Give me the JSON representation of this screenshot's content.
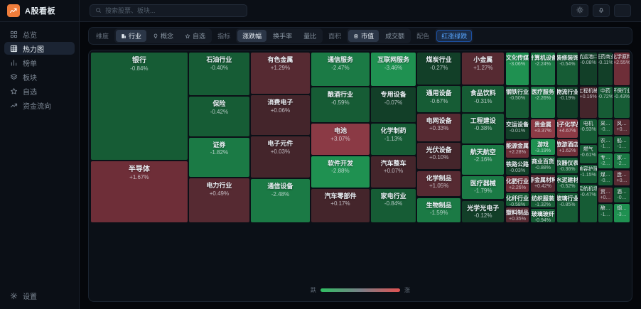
{
  "app": {
    "title": "A股看板",
    "logo_icon": "trend-logo-icon"
  },
  "header": {
    "search_placeholder": "搜索股票、板块...",
    "search_icon": "search-icon",
    "actions": [
      {
        "id": "theme",
        "icon": "sun-icon"
      },
      {
        "id": "notifications",
        "icon": "bell-icon"
      },
      {
        "id": "github",
        "icon": "github-icon"
      }
    ]
  },
  "sidebar": {
    "items": [
      {
        "id": "overview",
        "label": "总览",
        "icon": "grid-icon",
        "active": false
      },
      {
        "id": "heatmap",
        "label": "热力图",
        "icon": "heatmap-icon",
        "active": true
      },
      {
        "id": "ranking",
        "label": "榜单",
        "icon": "bar-chart-icon",
        "active": false
      },
      {
        "id": "sectors",
        "label": "板块",
        "icon": "layers-icon",
        "active": false
      },
      {
        "id": "watchlist",
        "label": "自选",
        "icon": "star-icon",
        "active": false
      },
      {
        "id": "fund-flow",
        "label": "资金流向",
        "icon": "trend-icon",
        "active": false
      }
    ],
    "footer": {
      "id": "settings",
      "label": "设置",
      "icon": "gear-icon"
    }
  },
  "toolbar": {
    "groups": [
      {
        "id": "dimension",
        "label": "维度",
        "selected": 0,
        "options": [
          {
            "label": "行业",
            "icon": "building-icon"
          },
          {
            "label": "概念",
            "icon": "bulb-icon"
          },
          {
            "label": "自选",
            "icon": "star-icon"
          }
        ]
      },
      {
        "id": "metric",
        "label": "指标",
        "selected": 0,
        "options": [
          {
            "label": "涨跌幅"
          },
          {
            "label": "换手率"
          },
          {
            "label": "量比"
          }
        ]
      },
      {
        "id": "size-by",
        "label": "面积",
        "selected": 0,
        "options": [
          {
            "label": "市值",
            "icon": "coin-icon"
          },
          {
            "label": "成交额"
          }
        ]
      },
      {
        "id": "color-scheme",
        "label": "配色",
        "selected": 0,
        "accent": true,
        "options": [
          {
            "label": "红涨绿跌"
          }
        ]
      }
    ]
  },
  "colors": {
    "accent_blue": "#58a6ff",
    "logo_orange": "#ef7d3b",
    "up_ramp": [
      "#44252b",
      "#562a32",
      "#6e2e38",
      "#8b3a45"
    ],
    "down_ramp": [
      "#123f28",
      "#165c35",
      "#1b7a45",
      "#1f9151"
    ],
    "legend_gradient": [
      "#2fbf62",
      "#7a8088",
      "#e05252"
    ]
  },
  "legend": {
    "left": "跌",
    "right": "涨"
  },
  "treemap": {
    "blocks": [
      {
        "n": "银行",
        "d": "-0.84%",
        "p": -0.84,
        "r": [
          0,
          0,
          17.9,
          63.2
        ]
      },
      {
        "n": "半导体",
        "d": "+1.67%",
        "p": 1.67,
        "r": [
          0,
          64.1,
          17.9,
          35.9
        ]
      },
      {
        "n": "石油行业",
        "d": "-0.40%",
        "p": -0.4,
        "r": [
          18.2,
          0,
          11.2,
          25.0
        ]
      },
      {
        "n": "保险",
        "d": "-0.42%",
        "p": -0.42,
        "r": [
          18.2,
          25.9,
          11.2,
          23.3
        ]
      },
      {
        "n": "证券",
        "d": "-1.82%",
        "p": -1.82,
        "r": [
          18.2,
          50.1,
          11.2,
          23.0
        ]
      },
      {
        "n": "电力行业",
        "d": "+0.49%",
        "p": 0.49,
        "r": [
          18.2,
          74.0,
          11.2,
          26.0
        ]
      },
      {
        "n": "有色金属",
        "d": "+1.29%",
        "p": 1.29,
        "r": [
          29.7,
          0,
          10.9,
          24.2
        ]
      },
      {
        "n": "消费电子",
        "d": "+0.06%",
        "p": 0.06,
        "r": [
          29.7,
          25.1,
          10.9,
          23.3
        ]
      },
      {
        "n": "电子元件",
        "d": "+0.03%",
        "p": 0.03,
        "r": [
          29.7,
          49.3,
          10.9,
          24.2
        ]
      },
      {
        "n": "通信设备",
        "d": "-2.48%",
        "p": -2.48,
        "r": [
          29.7,
          74.4,
          10.9,
          25.6
        ]
      },
      {
        "n": "通信服务",
        "d": "-2.47%",
        "p": -2.47,
        "r": [
          40.9,
          0,
          10.8,
          19.6
        ]
      },
      {
        "n": "酿酒行业",
        "d": "-0.59%",
        "p": -0.59,
        "r": [
          40.9,
          20.5,
          10.8,
          20.4
        ]
      },
      {
        "n": "电池",
        "d": "+3.07%",
        "p": 3.07,
        "r": [
          40.9,
          41.8,
          10.8,
          18.3
        ]
      },
      {
        "n": "软件开发",
        "d": "-2.88%",
        "p": -2.88,
        "r": [
          40.9,
          61.0,
          10.8,
          18.3
        ]
      },
      {
        "n": "汽车零部件",
        "d": "+0.17%",
        "p": 0.17,
        "r": [
          40.9,
          80.2,
          10.8,
          19.8
        ]
      },
      {
        "n": "互联网服务",
        "d": "-3.46%",
        "p": -3.46,
        "r": [
          52.0,
          0,
          8.3,
          19.6
        ]
      },
      {
        "n": "专用设备",
        "d": "-0.07%",
        "p": -0.07,
        "r": [
          52.0,
          20.5,
          8.3,
          20.4
        ]
      },
      {
        "n": "化学制药",
        "d": "-1.13%",
        "p": -1.13,
        "r": [
          52.0,
          41.8,
          8.3,
          18.3
        ]
      },
      {
        "n": "汽车整车",
        "d": "+0.07%",
        "p": 0.07,
        "r": [
          52.0,
          61.0,
          8.3,
          18.3
        ]
      },
      {
        "n": "家电行业",
        "d": "-0.84%",
        "p": -0.84,
        "r": [
          52.0,
          80.2,
          8.3,
          19.8
        ]
      },
      {
        "n": "煤炭行业",
        "d": "-0.27%",
        "p": -0.27,
        "r": [
          60.6,
          0,
          8.0,
          18.7
        ]
      },
      {
        "n": "通用设备",
        "d": "-0.67%",
        "p": -0.67,
        "r": [
          60.6,
          19.6,
          8.0,
          15.4
        ]
      },
      {
        "n": "电网设备",
        "d": "+0.33%",
        "p": 0.33,
        "r": [
          60.6,
          35.9,
          8.0,
          16.2
        ]
      },
      {
        "n": "光伏设备",
        "d": "+0.10%",
        "p": 0.1,
        "r": [
          60.6,
          53.0,
          8.0,
          15.8
        ]
      },
      {
        "n": "化学制品",
        "d": "+1.05%",
        "p": 1.05,
        "r": [
          60.6,
          69.7,
          8.0,
          15.0
        ]
      },
      {
        "n": "生物制品",
        "d": "-1.59%",
        "p": -1.59,
        "r": [
          60.6,
          85.6,
          8.0,
          14.4
        ]
      },
      {
        "n": "小金属",
        "d": "+1.27%",
        "p": 1.27,
        "r": [
          68.9,
          0,
          7.8,
          18.7
        ]
      },
      {
        "n": "食品饮料",
        "d": "-0.31%",
        "p": -0.31,
        "r": [
          68.9,
          19.6,
          7.8,
          15.4
        ]
      },
      {
        "n": "工程建设",
        "d": "-0.38%",
        "p": -0.38,
        "r": [
          68.9,
          35.9,
          7.8,
          17.5
        ]
      },
      {
        "n": "航天航空",
        "d": "-2.16%",
        "p": -2.16,
        "r": [
          68.9,
          54.3,
          7.8,
          17.5
        ]
      },
      {
        "n": "医疗器械",
        "d": "-1.79%",
        "p": -1.79,
        "r": [
          68.9,
          72.7,
          7.8,
          13.7
        ]
      },
      {
        "n": "光学光电子",
        "d": "-0.12%",
        "p": -0.12,
        "r": [
          68.9,
          87.3,
          7.8,
          12.7
        ]
      },
      {
        "n": "文化传媒",
        "d": "-3.06%",
        "p": -3.06,
        "r": [
          77.0,
          0,
          4.3,
          19.2
        ]
      },
      {
        "n": "钢铁行业",
        "d": "-0.50%",
        "p": -0.5,
        "r": [
          77.0,
          20.1,
          4.3,
          18.3
        ]
      },
      {
        "n": "交运设备",
        "d": "-0.01%",
        "p": -0.01,
        "r": [
          77.0,
          39.3,
          4.3,
          11.7
        ]
      },
      {
        "n": "能源金属",
        "d": "+2.28%",
        "p": 2.28,
        "r": [
          77.0,
          51.9,
          4.3,
          10.0
        ]
      },
      {
        "n": "铁路公路",
        "d": "-0.03%",
        "p": -0.03,
        "r": [
          77.0,
          62.8,
          4.3,
          9.1
        ]
      },
      {
        "n": "化肥行业",
        "d": "+2.26%",
        "p": 2.26,
        "r": [
          77.0,
          72.8,
          4.3,
          9.1
        ]
      },
      {
        "n": "化纤行业",
        "d": "-0.58%",
        "p": -0.58,
        "r": [
          77.0,
          82.8,
          4.3,
          7.5
        ]
      },
      {
        "n": "塑料制品",
        "d": "+0.35%",
        "p": 0.35,
        "r": [
          77.0,
          91.2,
          4.3,
          8.8
        ]
      },
      {
        "n": "计算机设备",
        "d": "-2.24%",
        "p": -2.24,
        "r": [
          81.6,
          0,
          4.6,
          19.2
        ]
      },
      {
        "n": "医疗服务",
        "d": "-2.26%",
        "p": -2.26,
        "r": [
          81.6,
          20.1,
          4.6,
          18.3
        ]
      },
      {
        "n": "贵金属",
        "d": "+3.37%",
        "p": 3.37,
        "r": [
          81.6,
          39.3,
          4.6,
          10.8
        ]
      },
      {
        "n": "游戏",
        "d": "-3.19%",
        "p": -3.19,
        "r": [
          81.6,
          51.0,
          4.6,
          9.1
        ]
      },
      {
        "n": "商业百货",
        "d": "-0.88%",
        "p": -0.88,
        "r": [
          81.6,
          61.0,
          4.6,
          10.0
        ]
      },
      {
        "n": "非金属材料",
        "d": "+0.42%",
        "p": 0.42,
        "r": [
          81.6,
          71.9,
          4.6,
          10.0
        ]
      },
      {
        "n": "纺织服装",
        "d": "-1.32%",
        "p": -1.32,
        "r": [
          81.6,
          82.8,
          4.6,
          8.3
        ]
      },
      {
        "n": "玻璃玻纤",
        "d": "-0.94%",
        "p": -0.94,
        "r": [
          81.6,
          92.0,
          4.6,
          8.0
        ]
      },
      {
        "n": "装修装饰",
        "d": "-0.54%",
        "p": -0.54,
        "r": [
          86.5,
          0,
          3.9,
          19.2
        ]
      },
      {
        "n": "物流行业",
        "d": "-0.19%",
        "p": -0.19,
        "r": [
          86.5,
          20.1,
          3.9,
          18.3
        ]
      },
      {
        "n": "电子化学品",
        "d": "+4.67%",
        "p": 4.67,
        "r": [
          86.5,
          39.3,
          3.9,
          10.8
        ]
      },
      {
        "n": "旅游酒店",
        "d": "+1.62%",
        "p": 1.62,
        "r": [
          86.5,
          51.0,
          3.9,
          10.0
        ]
      },
      {
        "n": "仪器仪表",
        "d": "-0.36%",
        "p": -0.36,
        "r": [
          86.5,
          61.9,
          3.9,
          9.1
        ]
      },
      {
        "n": "水泥建材",
        "d": "-0.52%",
        "p": -0.52,
        "r": [
          86.5,
          71.9,
          3.9,
          10.0
        ]
      },
      {
        "n": "玻璃行业",
        "d": "-0.85%",
        "p": -0.85,
        "r": [
          86.5,
          82.8,
          3.9,
          17.2
        ]
      },
      {
        "n": "航运港口",
        "d": "-0.08%",
        "p": -0.08,
        "r": [
          90.7,
          0,
          3.2,
          19.2
        ]
      },
      {
        "n": "工程机械",
        "d": "+0.16%",
        "p": 0.16,
        "r": [
          90.7,
          20.1,
          3.2,
          18.3
        ]
      },
      {
        "n": "电机",
        "d": "-0.93%",
        "p": -0.93,
        "r": [
          90.7,
          39.3,
          3.2,
          14.1
        ]
      },
      {
        "n": "燃气",
        "d": "-0.61%",
        "p": -0.61,
        "r": [
          90.7,
          54.3,
          3.2,
          10.8
        ]
      },
      {
        "n": "美容护理",
        "d": "-1.15%",
        "p": -1.15,
        "r": [
          90.7,
          66.0,
          3.2,
          10.8
        ]
      },
      {
        "n": "民航机场",
        "d": "-0.47%",
        "p": -0.47,
        "r": [
          90.7,
          77.7,
          3.2,
          22.3
        ]
      },
      {
        "n": "医药商业",
        "d": "-0.11%",
        "p": -0.11,
        "r": [
          94.2,
          0,
          2.6,
          19.2
        ]
      },
      {
        "n": "中药",
        "d": "-0.72%",
        "p": -0.72,
        "r": [
          94.2,
          20.1,
          2.6,
          18.3
        ]
      },
      {
        "n": "采…",
        "d": "-0…",
        "p": -0.3,
        "r": [
          94.2,
          39.3,
          2.6,
          9.1
        ]
      },
      {
        "n": "农…",
        "d": "-1…",
        "p": -1.2,
        "r": [
          94.2,
          49.3,
          2.6,
          9.1
        ]
      },
      {
        "n": "专…",
        "d": "-2…",
        "p": -2.1,
        "r": [
          94.2,
          59.3,
          2.6,
          9.1
        ]
      },
      {
        "n": "煤…",
        "d": "-0…",
        "p": -0.5,
        "r": [
          94.2,
          69.3,
          2.6,
          9.1
        ]
      },
      {
        "n": "贸…",
        "d": "+0…",
        "p": 0.4,
        "r": [
          94.2,
          79.3,
          2.6,
          9.1
        ]
      },
      {
        "n": "酿…",
        "d": "-1…",
        "p": -1.3,
        "r": [
          94.2,
          89.3,
          2.6,
          10.7
        ]
      },
      {
        "n": "化学原料",
        "d": "+2.55%",
        "p": 2.55,
        "r": [
          97.1,
          0,
          2.9,
          19.2
        ]
      },
      {
        "n": "环保行业",
        "d": "-0.43%",
        "p": -0.43,
        "r": [
          97.1,
          20.1,
          2.9,
          18.3
        ]
      },
      {
        "n": "风…",
        "d": "+0…",
        "p": 0.4,
        "r": [
          97.1,
          39.3,
          2.9,
          9.1
        ]
      },
      {
        "n": "船…",
        "d": "-1…",
        "p": -1.1,
        "r": [
          97.1,
          49.3,
          2.9,
          9.1
        ]
      },
      {
        "n": "家…",
        "d": "-2…",
        "p": -2.2,
        "r": [
          97.1,
          59.3,
          2.9,
          9.1
        ]
      },
      {
        "n": "造…",
        "d": "+0…",
        "p": 0.3,
        "r": [
          97.1,
          69.3,
          2.9,
          9.1
        ]
      },
      {
        "n": "酒…",
        "d": "-0…",
        "p": -0.6,
        "r": [
          97.1,
          79.3,
          2.9,
          9.1
        ]
      },
      {
        "n": "烟…",
        "d": "-3…",
        "p": -3.1,
        "r": [
          97.1,
          89.3,
          2.9,
          10.7
        ]
      }
    ]
  }
}
